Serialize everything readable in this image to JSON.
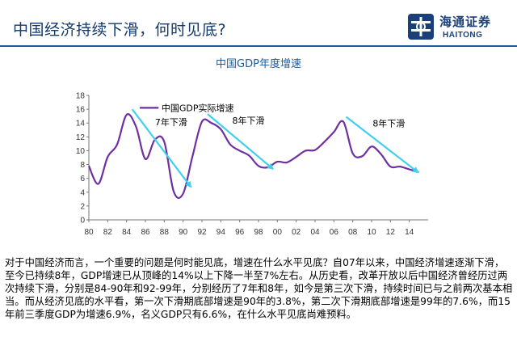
{
  "header": {
    "title": "中国经济持续下滑，何时见底?",
    "logo_cn": "海通证券",
    "logo_en": "HAITONG"
  },
  "chart_data": {
    "type": "line",
    "title": "中国GDP年度增速",
    "xlabel": "",
    "ylabel": "",
    "ylim": [
      0,
      18
    ],
    "yticks": [
      0,
      2,
      4,
      6,
      8,
      10,
      12,
      14,
      16,
      18
    ],
    "xlim": [
      1980,
      2016
    ],
    "xticks": [
      "80",
      "82",
      "84",
      "86",
      "88",
      "90",
      "92",
      "94",
      "96",
      "98",
      "00",
      "02",
      "04",
      "06",
      "08",
      "10",
      "12",
      "14"
    ],
    "legend_position": "top-left",
    "series": [
      {
        "name": "中国GDP实际增速",
        "color": "#6e2fa0",
        "x": [
          1980,
          1981,
          1982,
          1983,
          1984,
          1985,
          1986,
          1987,
          1988,
          1989,
          1990,
          1991,
          1992,
          1993,
          1994,
          1995,
          1996,
          1997,
          1998,
          1999,
          2000,
          2001,
          2002,
          2003,
          2004,
          2005,
          2006,
          2007,
          2008,
          2009,
          2010,
          2011,
          2012,
          2013,
          2014,
          2015
        ],
        "y": [
          7.8,
          5.2,
          9.1,
          10.9,
          15.2,
          13.5,
          8.8,
          11.6,
          11.3,
          4.1,
          3.8,
          9.2,
          14.2,
          14.0,
          13.1,
          10.9,
          10.0,
          9.3,
          7.8,
          7.6,
          8.4,
          8.3,
          9.1,
          10.0,
          10.1,
          11.3,
          12.7,
          14.2,
          9.6,
          9.2,
          10.6,
          9.5,
          7.7,
          7.7,
          7.3,
          6.9
        ]
      }
    ],
    "annotations": [
      {
        "text": "7年下滑",
        "from_x": 1984.6,
        "from_y": 16.0,
        "to_x": 1990.8,
        "to_y": 4.8
      },
      {
        "text": "8年下滑",
        "from_x": 1992.6,
        "from_y": 15.3,
        "to_x": 1999.5,
        "to_y": 7.4
      },
      {
        "text": "8年下滑",
        "from_x": 2007.3,
        "from_y": 14.9,
        "to_x": 2014.9,
        "to_y": 6.9
      }
    ],
    "annotation_color": "#3fd0ee"
  },
  "body_text": "对于中国经济而言，一个重要的问题是何时能见底，增速在什么水平见底？自07年以来，中国经济增速逐渐下滑，至今已持续8年，GDP增速已从顶峰的14%以上下降一半至7%左右。从历史看，改革开放以后中国经济曾经历过两次持续下滑，分别是84-90年和92-99年，分别经历了7年和8年，如今是第三次下滑，持续时间已与之前两次基本相当。而从经济见底的水平看，第一次下滑期底部增速是90年的3.8%，第二次下滑期底部增速是99年的7.6%，而15年前三季度GDP为增速6.9%，名义GDP只有6.6%，在什么水平见底尚难预料。"
}
